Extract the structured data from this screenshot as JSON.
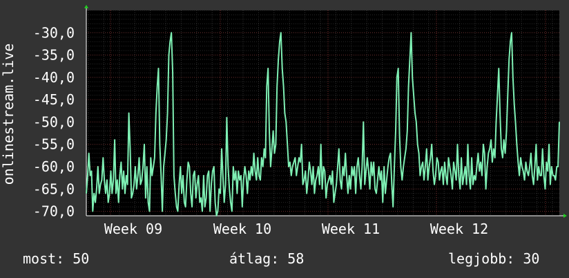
{
  "chart_data": {
    "type": "line",
    "ylabel": "onlinestream.live",
    "xlabel": "",
    "ylim": [
      -71,
      -25
    ],
    "x_tick_labels": [
      "Week 09",
      "Week 10",
      "Week 11",
      "Week 12"
    ],
    "y_tick_labels": [
      "-30,0",
      "-35,0",
      "-40,0",
      "-45,0",
      "-50,0",
      "-55,0",
      "-60,0",
      "-65,0",
      "-70,0"
    ],
    "y_ticks": [
      -30,
      -35,
      -40,
      -45,
      -50,
      -55,
      -60,
      -65,
      -70
    ],
    "grid": true,
    "series": [
      {
        "color": "#7ff0b4",
        "values": [
          -66,
          -62,
          -57,
          -62,
          -61,
          -70,
          -66,
          -68,
          -65,
          -60,
          -66,
          -64,
          -63,
          -58,
          -63,
          -66,
          -63,
          -68,
          -66,
          -61,
          -66,
          -63,
          -54,
          -66,
          -63,
          -68,
          -62,
          -59,
          -65,
          -61,
          -66,
          -62,
          -64,
          -48,
          -56,
          -67,
          -66,
          -64,
          -60,
          -65,
          -62,
          -58,
          -64,
          -63,
          -60,
          -55,
          -67,
          -60,
          -68,
          -70,
          -58,
          -62,
          -60,
          -58,
          -48,
          -42,
          -38,
          -55,
          -62,
          -70,
          -60,
          -57,
          -54,
          -48,
          -35,
          -32,
          -30,
          -39,
          -62,
          -66,
          -69,
          -70,
          -64,
          -60,
          -66,
          -62,
          -68,
          -69,
          -63,
          -59,
          -60,
          -66,
          -69,
          -62,
          -61,
          -67,
          -64,
          -62,
          -68,
          -67,
          -70,
          -62,
          -69,
          -67,
          -62,
          -61,
          -70,
          -64,
          -61,
          -60,
          -68,
          -71,
          -70,
          -65,
          -66,
          -56,
          -62,
          -68,
          -64,
          -49,
          -60,
          -65,
          -68,
          -70,
          -60,
          -63,
          -61,
          -66,
          -61,
          -63,
          -62,
          -69,
          -63,
          -60,
          -62,
          -66,
          -61,
          -63,
          -60,
          -62,
          -57,
          -61,
          -63,
          -58,
          -62,
          -63,
          -58,
          -60,
          -56,
          -58,
          -42,
          -38,
          -52,
          -60,
          -56,
          -52,
          -57,
          -55,
          -42,
          -36,
          -32,
          -30,
          -38,
          -42,
          -48,
          -50,
          -55,
          -60,
          -59,
          -62,
          -60,
          -59,
          -58,
          -62,
          -60,
          -58,
          -59,
          -55,
          -64,
          -63,
          -61,
          -66,
          -63,
          -59,
          -61,
          -64,
          -60,
          -66,
          -63,
          -62,
          -60,
          -64,
          -55,
          -65,
          -60,
          -61,
          -67,
          -64,
          -63,
          -62,
          -64,
          -61,
          -68,
          -66,
          -64,
          -60,
          -56,
          -63,
          -65,
          -60,
          -62,
          -57,
          -62,
          -66,
          -62,
          -65,
          -60,
          -62,
          -60,
          -66,
          -60,
          -58,
          -62,
          -65,
          -60,
          -50,
          -64,
          -61,
          -58,
          -61,
          -65,
          -59,
          -62,
          -59,
          -65,
          -66,
          -63,
          -60,
          -63,
          -61,
          -68,
          -60,
          -66,
          -63,
          -60,
          -58,
          -57,
          -64,
          -69,
          -60,
          -52,
          -40,
          -38,
          -53,
          -60,
          -63,
          -60,
          -58,
          -56,
          -52,
          -42,
          -36,
          -30,
          -40,
          -44,
          -48,
          -50,
          -55,
          -57,
          -62,
          -60,
          -59,
          -63,
          -60,
          -56,
          -63,
          -60,
          -58,
          -55,
          -61,
          -64,
          -62,
          -58,
          -59,
          -63,
          -61,
          -60,
          -64,
          -59,
          -62,
          -64,
          -58,
          -60,
          -62,
          -65,
          -59,
          -61,
          -63,
          -55,
          -62,
          -65,
          -58,
          -64,
          -62,
          -60,
          -64,
          -55,
          -62,
          -65,
          -58,
          -64,
          -62,
          -63,
          -60,
          -57,
          -61,
          -59,
          -62,
          -55,
          -57,
          -65,
          -60,
          -57,
          -56,
          -54,
          -59,
          -56,
          -58,
          -50,
          -44,
          -38,
          -48,
          -56,
          -58,
          -54,
          -57,
          -52,
          -44,
          -36,
          -32,
          -30,
          -40,
          -46,
          -50,
          -55,
          -59,
          -62,
          -58,
          -60,
          -61,
          -63,
          -59,
          -61,
          -62,
          -60,
          -57,
          -62,
          -64,
          -60,
          -55,
          -63,
          -60,
          -62,
          -62,
          -56,
          -62,
          -65,
          -59,
          -61,
          -55,
          -64,
          -60,
          -62,
          -62,
          -63,
          -60,
          -60,
          -50
        ]
      }
    ]
  },
  "footer": {
    "current": "most: 50",
    "average": "átlag: 58",
    "best": "legjobb: 30"
  }
}
